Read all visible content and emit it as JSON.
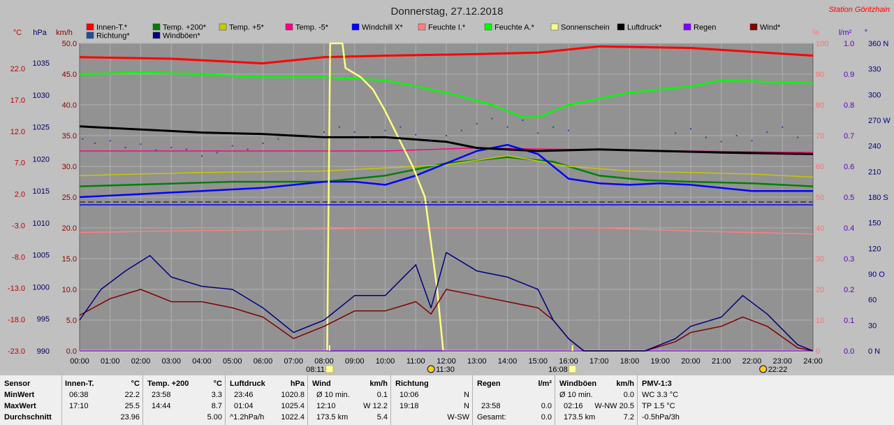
{
  "title": "Donnerstag, 27.12.2018",
  "station": "Station Göritzhain",
  "colors": {
    "plot_bg": "#929292",
    "grid": "#b0b0b0",
    "innen": "#ff0000",
    "t200": "#008000",
    "t5": "#c8c800",
    "tm5": "#ff0080",
    "windchill": "#0000ff",
    "feuchte_i": "#ff8080",
    "feuchte_a": "#00ff00",
    "sonne": "#ffff80",
    "luftdruck": "#000000",
    "regen": "#8000ff",
    "wind": "#800000",
    "richtung": "#1f4e9c",
    "windboeen": "#000080",
    "axis_c": "#c00000",
    "axis_hpa": "#000060",
    "axis_kmh": "#8b0000",
    "axis_pct": "#ff7070",
    "axis_lm2": "#6000c0",
    "axis_deg": "#000080"
  },
  "legend": [
    {
      "label": "Innen-T.*",
      "color": "#ff0000"
    },
    {
      "label": "Temp. +200*",
      "color": "#008000"
    },
    {
      "label": "Temp. +5*",
      "color": "#c8c800"
    },
    {
      "label": "Temp. -5*",
      "color": "#ff0080"
    },
    {
      "label": "Windchill X*",
      "color": "#0000ff"
    },
    {
      "label": "Feuchte I.*",
      "color": "#ff8080"
    },
    {
      "label": "Feuchte A.*",
      "color": "#00ff00"
    },
    {
      "label": "Sonnenschein",
      "color": "#ffff80"
    },
    {
      "label": "Luftdruck*",
      "color": "#000000"
    },
    {
      "label": "Regen",
      "color": "#8000ff"
    },
    {
      "label": "Wind*",
      "color": "#800000"
    },
    {
      "label": "Richtung*",
      "color": "#1f4e9c"
    },
    {
      "label": "Windböen*",
      "color": "#000080"
    }
  ],
  "axes": {
    "unit_c": "°C",
    "unit_hpa": "hPa",
    "unit_kmh": "km/h",
    "unit_pct": "%",
    "unit_lm2": "l/m²",
    "unit_deg": "°",
    "ticks_c": [
      "22.0",
      "17.0",
      "12.0",
      "7.0",
      "2.0",
      "-3.0",
      "-8.0",
      "-13.0",
      "-18.0",
      "-23.0"
    ],
    "ticks_hpa": [
      "1035",
      "1030",
      "1025",
      "1020",
      "1015",
      "1010",
      "1005",
      "1000",
      "995",
      "990"
    ],
    "ticks_kmh": [
      "50.0",
      "45.0",
      "40.0",
      "35.0",
      "30.0",
      "25.0",
      "20.0",
      "15.0",
      "10.0",
      "5.0",
      "0.0"
    ],
    "ticks_pct": [
      "100",
      "90",
      "80",
      "70",
      "60",
      "50",
      "40",
      "30",
      "20",
      "10",
      "0"
    ],
    "ticks_lm2": [
      "1.0",
      "0.9",
      "0.8",
      "0.7",
      "0.6",
      "0.5",
      "0.4",
      "0.3",
      "0.2",
      "0.1",
      "0.0"
    ],
    "ticks_deg": [
      "360 N",
      "330",
      "300",
      "270 W",
      "240",
      "210",
      "180 S",
      "150",
      "120",
      "90 O",
      "60",
      "30",
      "0 N"
    ],
    "ticks_time": [
      "00:00",
      "01:00",
      "02:00",
      "03:00",
      "04:00",
      "05:00",
      "06:00",
      "07:00",
      "08:00",
      "09:00",
      "10:00",
      "11:00",
      "12:00",
      "13:00",
      "14:00",
      "15:00",
      "16:00",
      "17:00",
      "18:00",
      "19:00",
      "20:00",
      "21:00",
      "22:00",
      "23:00",
      "24:00"
    ]
  },
  "markers": [
    {
      "label": "08:11",
      "time": 8.18,
      "kind": "sunrise"
    },
    {
      "label": "11:30",
      "time": 11.5,
      "kind": "moon"
    },
    {
      "label": "16:08",
      "time": 16.13,
      "kind": "sunset"
    },
    {
      "label": "22:22",
      "time": 22.37,
      "kind": "moon"
    }
  ],
  "chart_data": {
    "type": "line",
    "x_unit": "hours",
    "xlim": [
      0,
      24
    ],
    "series": [
      {
        "name": "Innen-T.*",
        "axis": "pct",
        "values": [
          [
            0,
            95.5
          ],
          [
            3,
            95
          ],
          [
            6,
            93.5
          ],
          [
            8,
            95.5
          ],
          [
            10,
            96
          ],
          [
            13,
            96.5
          ],
          [
            15,
            97
          ],
          [
            17,
            99
          ],
          [
            20,
            98.5
          ],
          [
            24,
            96
          ]
        ]
      },
      {
        "name": "Temp. +200*",
        "axis": "pct",
        "values": [
          [
            0,
            53.5
          ],
          [
            5,
            55
          ],
          [
            8,
            55
          ],
          [
            10,
            57
          ],
          [
            12,
            61
          ],
          [
            14,
            63
          ],
          [
            15.5,
            61.5
          ],
          [
            17,
            57
          ],
          [
            18.5,
            55.5
          ],
          [
            20,
            55
          ],
          [
            22,
            54.5
          ],
          [
            24,
            53.5
          ]
        ]
      },
      {
        "name": "Temp. +5*",
        "axis": "pct",
        "values": [
          [
            0,
            57
          ],
          [
            4,
            58
          ],
          [
            8,
            58.5
          ],
          [
            10,
            59.5
          ],
          [
            12,
            60.5
          ],
          [
            14,
            63.5
          ],
          [
            16,
            60
          ],
          [
            18,
            58.5
          ],
          [
            20,
            58
          ],
          [
            22,
            57.5
          ],
          [
            24,
            56.5
          ]
        ]
      },
      {
        "name": "Temp. -5*",
        "axis": "pct",
        "values": [
          [
            0,
            65
          ],
          [
            10,
            65
          ],
          [
            13,
            66
          ],
          [
            16,
            65.5
          ],
          [
            20,
            65
          ],
          [
            24,
            64.5
          ]
        ]
      },
      {
        "name": "Windchill X*",
        "axis": "pct",
        "values": [
          [
            0,
            50
          ],
          [
            2,
            51
          ],
          [
            4,
            52
          ],
          [
            6,
            53
          ],
          [
            8,
            55
          ],
          [
            9,
            55
          ],
          [
            10,
            54
          ],
          [
            11,
            57
          ],
          [
            12,
            61
          ],
          [
            13,
            65
          ],
          [
            14,
            67
          ],
          [
            15,
            64
          ],
          [
            16,
            56
          ],
          [
            17,
            54.5
          ],
          [
            18,
            54
          ],
          [
            19,
            54.5
          ],
          [
            20,
            54
          ],
          [
            22,
            52
          ],
          [
            24,
            52
          ]
        ]
      },
      {
        "name": "Feuchte I.*",
        "axis": "pct",
        "values": [
          [
            0,
            38.5
          ],
          [
            3,
            39
          ],
          [
            7,
            39.5
          ],
          [
            10,
            40
          ],
          [
            14,
            40
          ],
          [
            17,
            40
          ],
          [
            20,
            39
          ],
          [
            24,
            38
          ]
        ]
      },
      {
        "name": "Feuchte A.*",
        "axis": "pct",
        "values": [
          [
            0,
            90
          ],
          [
            2,
            90.5
          ],
          [
            4,
            90
          ],
          [
            6,
            89
          ],
          [
            8,
            89
          ],
          [
            10,
            88
          ],
          [
            12,
            84
          ],
          [
            13.5,
            80
          ],
          [
            14.5,
            76
          ],
          [
            15,
            76
          ],
          [
            16,
            80
          ],
          [
            18,
            84
          ],
          [
            20,
            86
          ],
          [
            21,
            88
          ],
          [
            24,
            87
          ]
        ]
      },
      {
        "name": "Sonnenschein",
        "axis": "pct",
        "values": [
          [
            0,
            0
          ],
          [
            8.1,
            0
          ],
          [
            8.2,
            100
          ],
          [
            8.6,
            100
          ],
          [
            8.7,
            92
          ],
          [
            9.2,
            89
          ],
          [
            9.6,
            85
          ],
          [
            10.0,
            78
          ],
          [
            10.4,
            70
          ],
          [
            10.9,
            60
          ],
          [
            11.3,
            50
          ],
          [
            11.7,
            20
          ],
          [
            11.9,
            0
          ],
          [
            24,
            0
          ]
        ]
      },
      {
        "name": "Luftdruck*",
        "axis": "pct",
        "values": [
          [
            0,
            73
          ],
          [
            2,
            72
          ],
          [
            4,
            71
          ],
          [
            6,
            70.5
          ],
          [
            8,
            69.5
          ],
          [
            10,
            69.5
          ],
          [
            12,
            68
          ],
          [
            13,
            66
          ],
          [
            15,
            65
          ],
          [
            17,
            65.5
          ],
          [
            19,
            65
          ],
          [
            21,
            64.5
          ],
          [
            24,
            64
          ]
        ]
      },
      {
        "name": "Regen",
        "axis": "pct",
        "values": [
          [
            0,
            0
          ],
          [
            24,
            0
          ]
        ]
      },
      {
        "name": "Wind*",
        "axis": "kmh",
        "values": [
          [
            0,
            5.8
          ],
          [
            1,
            8.5
          ],
          [
            2,
            10
          ],
          [
            3,
            8
          ],
          [
            4,
            8
          ],
          [
            5,
            7
          ],
          [
            6,
            5.5
          ],
          [
            7,
            2
          ],
          [
            8,
            4
          ],
          [
            9,
            6.5
          ],
          [
            10,
            6.5
          ],
          [
            11,
            8
          ],
          [
            11.5,
            6
          ],
          [
            12,
            10
          ],
          [
            13,
            9
          ],
          [
            14,
            8
          ],
          [
            15,
            7
          ],
          [
            15.5,
            5
          ],
          [
            16,
            2
          ],
          [
            16.5,
            0
          ],
          [
            18.5,
            0
          ],
          [
            19.5,
            1.5
          ],
          [
            20,
            3
          ],
          [
            21,
            4
          ],
          [
            21.7,
            5.5
          ],
          [
            22.5,
            4
          ],
          [
            23.5,
            0.5
          ],
          [
            24,
            0
          ]
        ]
      },
      {
        "name": "Windböen*",
        "axis": "kmh",
        "values": [
          [
            0,
            5
          ],
          [
            0.7,
            10
          ],
          [
            1.5,
            13
          ],
          [
            2.3,
            15.5
          ],
          [
            3,
            12
          ],
          [
            4,
            10.5
          ],
          [
            5,
            10
          ],
          [
            6,
            7
          ],
          [
            7,
            3
          ],
          [
            8,
            5
          ],
          [
            9,
            9
          ],
          [
            10,
            9
          ],
          [
            11,
            14
          ],
          [
            11.5,
            7
          ],
          [
            12,
            16
          ],
          [
            13,
            13
          ],
          [
            14,
            12
          ],
          [
            15,
            10
          ],
          [
            15.5,
            5
          ],
          [
            16,
            2
          ],
          [
            16.5,
            0
          ],
          [
            18.5,
            0
          ],
          [
            19.5,
            2
          ],
          [
            20,
            4
          ],
          [
            21,
            5.5
          ],
          [
            21.7,
            9
          ],
          [
            22.5,
            6
          ],
          [
            23.5,
            1
          ],
          [
            24,
            0
          ]
        ]
      },
      {
        "name": "Richtung*",
        "axis": "deg",
        "type": "scatter",
        "values": [
          [
            0.1,
            248
          ],
          [
            0.5,
            243
          ],
          [
            1,
            246
          ],
          [
            1.5,
            238
          ],
          [
            2,
            242
          ],
          [
            2.5,
            235
          ],
          [
            3,
            238
          ],
          [
            3.5,
            236
          ],
          [
            4,
            228
          ],
          [
            4.5,
            232
          ],
          [
            5,
            240
          ],
          [
            5.5,
            236
          ],
          [
            6,
            243
          ],
          [
            6.5,
            248
          ],
          [
            7,
            253
          ],
          [
            7.5,
            250
          ],
          [
            8,
            256
          ],
          [
            8.5,
            262
          ],
          [
            9,
            256
          ],
          [
            9.5,
            250
          ],
          [
            10,
            258
          ],
          [
            10.5,
            262
          ],
          [
            11,
            253
          ],
          [
            11.5,
            247
          ],
          [
            12,
            252
          ],
          [
            12.5,
            258
          ],
          [
            13,
            266
          ],
          [
            13.5,
            272
          ],
          [
            14,
            262
          ],
          [
            14.5,
            270
          ],
          [
            15,
            255
          ],
          [
            15.5,
            262
          ],
          [
            16,
            258
          ],
          [
            19.5,
            255
          ],
          [
            20,
            260
          ],
          [
            20.5,
            250
          ],
          [
            21,
            245
          ],
          [
            21.5,
            252
          ],
          [
            22,
            246
          ],
          [
            22.5,
            256
          ],
          [
            23,
            262
          ],
          [
            23.5,
            250
          ]
        ]
      }
    ]
  },
  "stats_table": {
    "row_labels": [
      "Sensor",
      "MinWert",
      "MaxWert",
      "Durchschnitt"
    ],
    "innen": {
      "h1": "Innen-T.",
      "h2": "°C",
      "min_t": "06:38",
      "min_v": "22.2",
      "max_t": "17:10",
      "max_v": "25.5",
      "avg": "23.96"
    },
    "t200": {
      "h1": "Temp. +200",
      "h2": "°C",
      "min_t": "23:58",
      "min_v": "3.3",
      "max_t": "14:44",
      "max_v": "8.7",
      "avg": "5.00"
    },
    "druck": {
      "h1": "Luftdruck",
      "h2": "hPa",
      "min_t": "23:46",
      "min_v": "1020.8",
      "max_t": "01:04",
      "max_v": "1025.4",
      "avg_l": "^1.2hPa/h",
      "avg": "1022.4"
    },
    "wind": {
      "h1": "Wind",
      "h2": "km/h",
      "min_t": "Ø 10 min.",
      "min_v": "0.1",
      "max_t": "12:10",
      "max_v": "W 12.2",
      "avg_l": "173.5 km",
      "avg": "5.4"
    },
    "richt": {
      "h1": "Richtung",
      "min_t": "10:06",
      "min_v": "N",
      "max_t": "19:18",
      "max_v": "N",
      "avg": "W-SW"
    },
    "regen": {
      "h1": "Regen",
      "h2": "l/m²",
      "max_t": "23:58",
      "max_v": "0.0",
      "avg_l": "Gesamt:",
      "avg": "0.0"
    },
    "boeen": {
      "h1": "Windböen",
      "h2": "km/h",
      "min_t": "Ø 10 min.",
      "min_v": "0.0",
      "max_t": "02:16",
      "max_v": "W-NW 20.5",
      "avg_l": "173.5 km",
      "avg": "7.2"
    },
    "pmv": {
      "h1": "PMV-1:3",
      "min": "WC 3.3 °C",
      "max": "TP 1.5 °C",
      "avg": "-0.5hPa/3h"
    }
  }
}
